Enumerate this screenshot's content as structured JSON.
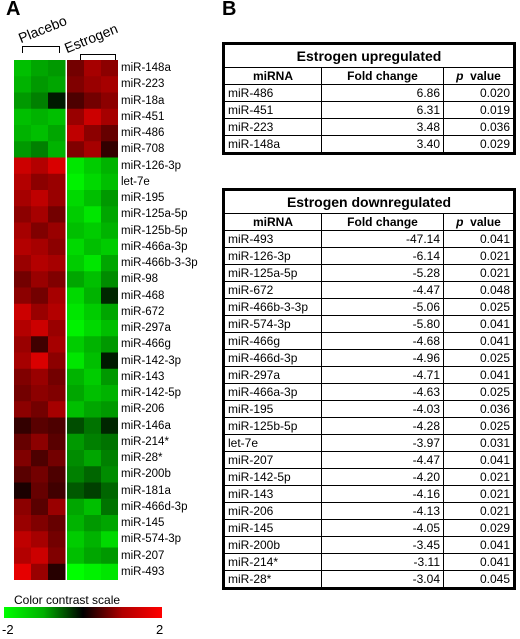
{
  "panel_a": {
    "label": "A",
    "groups": [
      "Placebo",
      "Estrogen"
    ],
    "mirnas": [
      "miR-148a",
      "miR-223",
      "miR-18a",
      "miR-451",
      "miR-486",
      "miR-708",
      "miR-126-3p",
      "let-7e",
      "miR-195",
      "miR-125a-5p",
      "miR-125b-5p",
      "miR-466a-3p",
      "miR-466b-3-3p",
      "miR-98",
      "miR-468",
      "miR-672",
      "miR-297a",
      "miR-466g",
      "miR-142-3p",
      "miR-143",
      "miR-142-5p",
      "miR-206",
      "miR-146a",
      "miR-214*",
      "miR-28*",
      "miR-200b",
      "miR-181a",
      "miR-466d-3p",
      "miR-145",
      "miR-574-3p",
      "miR-207",
      "miR-493"
    ],
    "heatmap_values": [
      [
        -1.5,
        -1.3,
        -1.2,
        0.9,
        1.3,
        1.1
      ],
      [
        -1.4,
        -1.2,
        -1.3,
        1.0,
        1.2,
        1.3
      ],
      [
        -1.2,
        -1.0,
        -0.2,
        0.6,
        0.9,
        1.1
      ],
      [
        -1.5,
        -1.4,
        -1.5,
        1.2,
        1.6,
        1.3
      ],
      [
        -1.4,
        -1.5,
        -1.3,
        1.5,
        1.1,
        0.8
      ],
      [
        -1.2,
        -1.0,
        -1.4,
        1.0,
        1.3,
        0.4
      ],
      [
        1.6,
        1.4,
        1.7,
        -1.8,
        -1.6,
        -1.4
      ],
      [
        1.4,
        1.1,
        1.2,
        -1.9,
        -1.7,
        -1.5
      ],
      [
        1.3,
        1.5,
        1.2,
        -1.7,
        -1.5,
        -1.2
      ],
      [
        1.1,
        1.3,
        0.9,
        -1.6,
        -1.8,
        -1.3
      ],
      [
        1.3,
        1.0,
        1.2,
        -1.5,
        -1.6,
        -1.4
      ],
      [
        1.4,
        1.3,
        1.1,
        -1.7,
        -1.5,
        -1.6
      ],
      [
        1.2,
        1.4,
        1.3,
        -1.6,
        -1.8,
        -1.3
      ],
      [
        0.9,
        1.2,
        1.0,
        -1.3,
        -1.5,
        -1.1
      ],
      [
        1.1,
        0.9,
        1.3,
        -1.7,
        -1.4,
        -0.3
      ],
      [
        1.6,
        1.2,
        1.4,
        -1.8,
        -1.6,
        -1.3
      ],
      [
        1.4,
        1.6,
        1.2,
        -1.9,
        -1.7,
        -1.5
      ],
      [
        1.2,
        0.5,
        1.3,
        -1.6,
        -1.4,
        -1.2
      ],
      [
        1.3,
        1.7,
        1.1,
        -1.8,
        -1.5,
        -0.2
      ],
      [
        1.0,
        1.2,
        0.9,
        -1.4,
        -1.6,
        -1.2
      ],
      [
        0.9,
        1.1,
        1.0,
        -1.3,
        -1.5,
        -1.4
      ],
      [
        1.1,
        0.9,
        1.3,
        -1.5,
        -1.3,
        -1.2
      ],
      [
        0.4,
        0.7,
        0.6,
        -0.6,
        -0.9,
        -0.3
      ],
      [
        0.8,
        1.1,
        0.7,
        -1.2,
        -1.0,
        -0.9
      ],
      [
        1.0,
        0.6,
        0.9,
        -1.1,
        -1.3,
        -1.0
      ],
      [
        0.7,
        0.9,
        0.6,
        -1.0,
        -0.8,
        -1.1
      ],
      [
        0.2,
        0.8,
        0.5,
        -0.7,
        -0.5,
        -0.8
      ],
      [
        1.1,
        0.7,
        1.2,
        -1.3,
        -1.5,
        -0.9
      ],
      [
        1.2,
        1.0,
        0.8,
        -1.4,
        -1.2,
        -1.3
      ],
      [
        1.5,
        1.3,
        0.9,
        -1.6,
        -1.4,
        -1.7
      ],
      [
        1.4,
        1.6,
        1.0,
        -1.5,
        -1.3,
        -1.2
      ],
      [
        1.8,
        1.2,
        0.3,
        -2.0,
        -1.9,
        -1.8
      ]
    ],
    "scale_title": "Color contrast scale",
    "scale_min": "-2",
    "scale_max": "2",
    "colors": {
      "low": "#00ff00",
      "mid": "#000000",
      "high": "#ff0000"
    }
  },
  "panel_b": {
    "label": "B",
    "up": {
      "title": "Estrogen upregulated",
      "headers": [
        "miRNA",
        "Fold change",
        "p",
        "value"
      ],
      "rows": [
        [
          "miR-486",
          "6.86",
          "0.020"
        ],
        [
          "miR-451",
          "6.31",
          "0.019"
        ],
        [
          "miR-223",
          "3.48",
          "0.036"
        ],
        [
          "miR-148a",
          "3.40",
          "0.029"
        ]
      ]
    },
    "down": {
      "title": "Estrogen downregulated",
      "headers": [
        "miRNA",
        "Fold change",
        "p",
        "value"
      ],
      "rows": [
        [
          "miR-493",
          "-47.14",
          "0.041"
        ],
        [
          "miR-126-3p",
          "-6.14",
          "0.021"
        ],
        [
          "miR-125a-5p",
          "-5.28",
          "0.021"
        ],
        [
          "miR-672",
          "-4.47",
          "0.048"
        ],
        [
          "miR-466b-3-3p",
          "-5.06",
          "0.025"
        ],
        [
          "miR-574-3p",
          "-5.80",
          "0.041"
        ],
        [
          "miR-466g",
          "-4.68",
          "0.041"
        ],
        [
          "miR-466d-3p",
          "-4.96",
          "0.025"
        ],
        [
          "miR-297a",
          "-4.71",
          "0.041"
        ],
        [
          "miR-466a-3p",
          "-4.63",
          "0.025"
        ],
        [
          "miR-195",
          "-4.03",
          "0.036"
        ],
        [
          "miR-125b-5p",
          "-4.28",
          "0.025"
        ],
        [
          "let-7e",
          "-3.97",
          "0.031"
        ],
        [
          "miR-207",
          "-4.47",
          "0.041"
        ],
        [
          "miR-142-5p",
          "-4.20",
          "0.021"
        ],
        [
          "miR-143",
          "-4.16",
          "0.021"
        ],
        [
          "miR-206",
          "-4.13",
          "0.021"
        ],
        [
          "miR-145",
          "-4.05",
          "0.029"
        ],
        [
          "miR-200b",
          "-3.45",
          "0.041"
        ],
        [
          "miR-214*",
          "-3.11",
          "0.041"
        ],
        [
          "miR-28*",
          "-3.04",
          "0.045"
        ]
      ]
    }
  }
}
